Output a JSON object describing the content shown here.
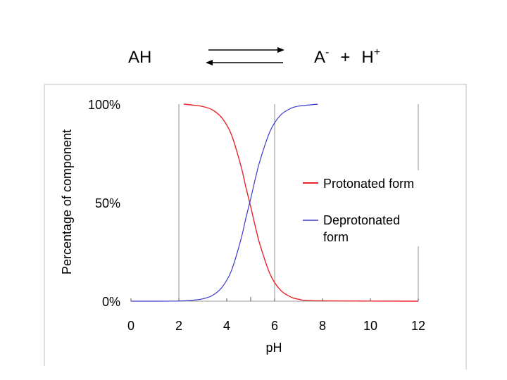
{
  "equation": {
    "reactant": "AH",
    "product_anion": "A",
    "anion_charge": "-",
    "plus": "+",
    "product_proton": "H",
    "proton_charge": "+"
  },
  "chart_data": {
    "type": "line",
    "title": "",
    "xlabel": "pH",
    "ylabel": "Percentage of component",
    "xlim": [
      0,
      12
    ],
    "ylim": [
      0,
      100
    ],
    "x_ticks": [
      "0",
      "2",
      "4",
      "6",
      "8",
      "10",
      "12"
    ],
    "y_ticks": [
      "0%",
      "50%",
      "100%"
    ],
    "grid": "vertical lines at pH 2, 6 and 12",
    "legend_position": "right",
    "series": [
      {
        "name": "Protonated form",
        "color": "#e8242c",
        "x": [
          2.2,
          2.6,
          3.0,
          3.4,
          3.8,
          4.2,
          4.6,
          4.8,
          5.0,
          5.2,
          5.4,
          5.8,
          6.2,
          6.6,
          7.0,
          7.8,
          12
        ],
        "y": [
          100,
          99.5,
          98.8,
          97.1,
          93.0,
          84.4,
          68.3,
          57.8,
          48.0,
          37.5,
          28.2,
          14.0,
          6.2,
          2.6,
          1.0,
          0.2,
          0
        ]
      },
      {
        "name": "Deprotonated form",
        "color": "#3a3acc",
        "x": [
          0,
          1.0,
          2.0,
          2.6,
          3.0,
          3.4,
          3.8,
          4.2,
          4.6,
          4.8,
          5.0,
          5.2,
          5.4,
          5.8,
          6.2,
          6.6,
          7.0,
          7.8
        ],
        "y": [
          0,
          0,
          0.1,
          0.5,
          1.2,
          2.9,
          7.0,
          15.6,
          31.7,
          42.2,
          52.0,
          62.5,
          71.8,
          86.0,
          93.8,
          97.4,
          99.0,
          100
        ]
      }
    ],
    "legend_entries": [
      "Protonated form",
      "Deprotonated",
      "form"
    ]
  }
}
